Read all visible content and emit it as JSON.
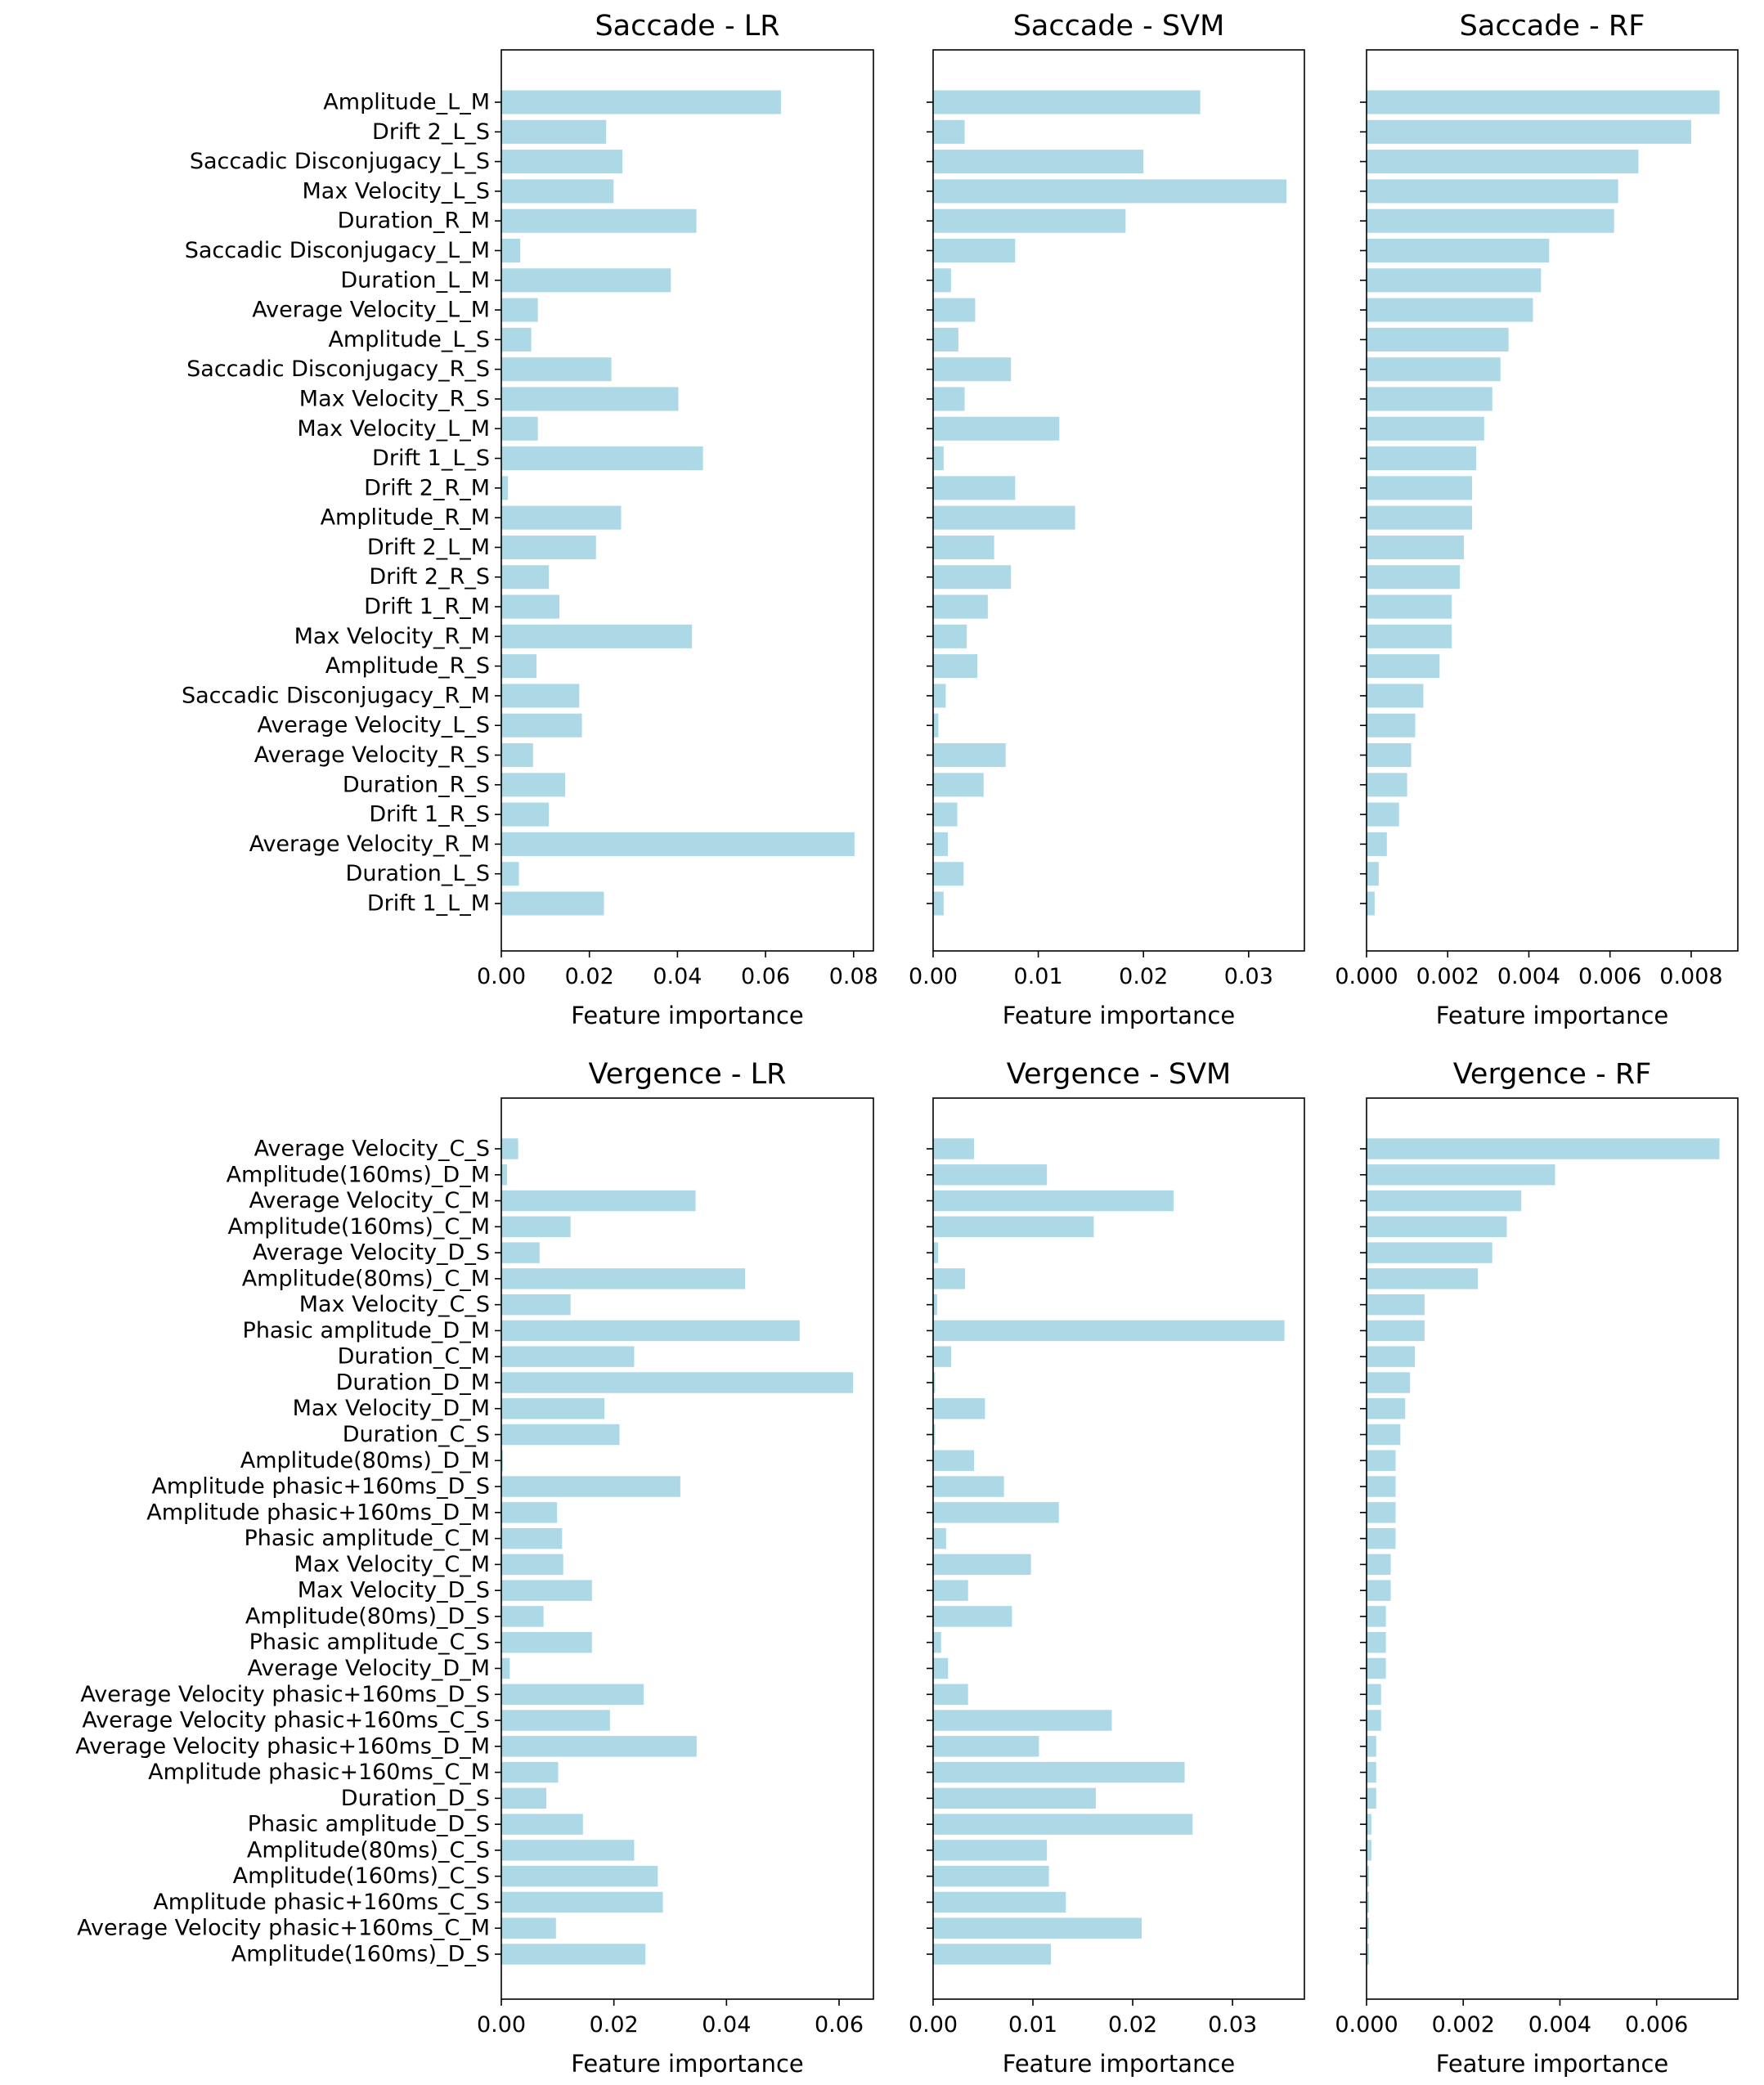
{
  "chart_data": [
    {
      "type": "bar",
      "orientation": "horizontal",
      "title": "Saccade - LR",
      "xlabel": "Feature importance",
      "xlim": [
        0,
        0.0845
      ],
      "xticks": [
        0.0,
        0.02,
        0.04,
        0.06,
        0.08
      ],
      "xtick_labels": [
        "0.00",
        "0.02",
        "0.04",
        "0.06",
        "0.08"
      ],
      "categories": [
        "Amplitude_L_M",
        "Drift 2_L_S",
        "Saccadic Disconjugacy_L_S",
        "Max Velocity_L_S",
        "Duration_R_M",
        "Saccadic Disconjugacy_L_M",
        "Duration_L_M",
        "Average Velocity_L_M",
        "Amplitude_L_S",
        "Saccadic Disconjugacy_R_S",
        "Max Velocity_R_S",
        "Max Velocity_L_M",
        "Drift 1_L_S",
        "Drift 2_R_M",
        "Amplitude_R_M",
        "Drift 2_L_M",
        "Drift 2_R_S",
        "Drift 1_R_M",
        "Max Velocity_R_M",
        "Amplitude_R_S",
        "Saccadic Disconjugacy_R_M",
        "Average Velocity_L_S",
        "Average Velocity_R_S",
        "Duration_R_S",
        "Drift 1_R_S",
        "Average Velocity_R_M",
        "Duration_L_S",
        "Drift 1_L_M"
      ],
      "values": [
        0.0635,
        0.0238,
        0.0275,
        0.0255,
        0.0443,
        0.0043,
        0.0385,
        0.0083,
        0.0068,
        0.025,
        0.0402,
        0.0083,
        0.0458,
        0.0015,
        0.0272,
        0.0215,
        0.0108,
        0.0132,
        0.0433,
        0.008,
        0.0177,
        0.0183,
        0.0072,
        0.0145,
        0.0108,
        0.0802,
        0.004,
        0.0233
      ]
    },
    {
      "type": "bar",
      "orientation": "horizontal",
      "title": "Saccade - SVM",
      "xlabel": "Feature importance",
      "xlim": [
        0,
        0.0353
      ],
      "xticks": [
        0.0,
        0.01,
        0.02,
        0.03
      ],
      "xtick_labels": [
        "0.00",
        "0.01",
        "0.02",
        "0.03"
      ],
      "categories": [
        "Amplitude_L_M",
        "Drift 2_L_S",
        "Saccadic Disconjugacy_L_S",
        "Max Velocity_L_S",
        "Duration_R_M",
        "Saccadic Disconjugacy_L_M",
        "Duration_L_M",
        "Average Velocity_L_M",
        "Amplitude_L_S",
        "Saccadic Disconjugacy_R_S",
        "Max Velocity_R_S",
        "Max Velocity_L_M",
        "Drift 1_L_S",
        "Drift 2_R_M",
        "Amplitude_R_M",
        "Drift 2_L_M",
        "Drift 2_R_S",
        "Drift 1_R_M",
        "Max Velocity_R_M",
        "Amplitude_R_S",
        "Saccadic Disconjugacy_R_M",
        "Average Velocity_L_S",
        "Average Velocity_R_S",
        "Duration_R_S",
        "Drift 1_R_S",
        "Average Velocity_R_M",
        "Duration_L_S",
        "Drift 1_L_M"
      ],
      "values": [
        0.0254,
        0.003,
        0.02,
        0.0336,
        0.0183,
        0.0078,
        0.0017,
        0.004,
        0.0024,
        0.0074,
        0.003,
        0.012,
        0.001,
        0.0078,
        0.0135,
        0.0058,
        0.0074,
        0.0052,
        0.0032,
        0.0042,
        0.0012,
        0.0005,
        0.0069,
        0.0048,
        0.0023,
        0.0014,
        0.0029,
        0.001
      ]
    },
    {
      "type": "bar",
      "orientation": "horizontal",
      "title": "Saccade - RF",
      "xlabel": "Feature importance",
      "xlim": [
        0,
        0.00915
      ],
      "xticks": [
        0.0,
        0.002,
        0.004,
        0.006,
        0.008
      ],
      "xtick_labels": [
        "0.000",
        "0.002",
        "0.004",
        "0.006",
        "0.008"
      ],
      "categories": [
        "Amplitude_L_M",
        "Drift 2_L_S",
        "Saccadic Disconjugacy_L_S",
        "Max Velocity_L_S",
        "Duration_R_M",
        "Saccadic Disconjugacy_L_M",
        "Duration_L_M",
        "Average Velocity_L_M",
        "Amplitude_L_S",
        "Saccadic Disconjugacy_R_S",
        "Max Velocity_R_S",
        "Max Velocity_L_M",
        "Drift 1_L_S",
        "Drift 2_R_M",
        "Amplitude_R_M",
        "Drift 2_L_M",
        "Drift 2_R_S",
        "Drift 1_R_M",
        "Max Velocity_R_M",
        "Amplitude_R_S",
        "Saccadic Disconjugacy_R_M",
        "Average Velocity_L_S",
        "Average Velocity_R_S",
        "Duration_R_S",
        "Drift 1_R_S",
        "Average Velocity_R_M",
        "Duration_L_S",
        "Drift 1_L_M"
      ],
      "values": [
        0.0087,
        0.008,
        0.0067,
        0.0062,
        0.0061,
        0.0045,
        0.0043,
        0.0041,
        0.0035,
        0.0033,
        0.0031,
        0.0029,
        0.0027,
        0.0026,
        0.0026,
        0.0024,
        0.0023,
        0.0021,
        0.0021,
        0.0018,
        0.0014,
        0.0012,
        0.0011,
        0.001,
        0.0008,
        0.0005,
        0.0003,
        0.0002
      ]
    },
    {
      "type": "bar",
      "orientation": "horizontal",
      "title": "Vergence - LR",
      "xlabel": "Feature importance",
      "xlim": [
        0,
        0.0661
      ],
      "xticks": [
        0.0,
        0.02,
        0.04,
        0.06
      ],
      "xtick_labels": [
        "0.00",
        "0.02",
        "0.04",
        "0.06"
      ],
      "categories": [
        "Average Velocity_C_S",
        "Amplitude(160ms)_D_M",
        "Average Velocity_C_M",
        "Amplitude(160ms)_C_M",
        "Average Velocity_D_S",
        "Amplitude(80ms)_C_M",
        "Max Velocity_C_S",
        "Phasic amplitude_D_M",
        "Duration_C_M",
        "Duration_D_M",
        "Max Velocity_D_M",
        "Duration_C_S",
        "Amplitude(80ms)_D_M",
        "Amplitude phasic+160ms_D_S",
        "Amplitude phasic+160ms_D_M",
        "Phasic amplitude_C_M",
        "Max Velocity_C_M",
        "Max Velocity_D_S",
        "Amplitude(80ms)_D_S",
        "Phasic amplitude_C_S",
        "Average Velocity_D_M",
        "Average Velocity phasic+160ms_D_S",
        "Average Velocity phasic+160ms_C_S",
        "Average Velocity phasic+160ms_D_M",
        "Amplitude phasic+160ms_C_M",
        "Duration_D_S",
        "Phasic amplitude_D_S",
        "Amplitude(80ms)_C_S",
        "Amplitude(160ms)_C_S",
        "Amplitude phasic+160ms_C_S",
        "Average Velocity phasic+160ms_C_M",
        "Amplitude(160ms)_D_S"
      ],
      "values": [
        0.003,
        0.001,
        0.0345,
        0.0123,
        0.0068,
        0.0433,
        0.0123,
        0.053,
        0.0236,
        0.0625,
        0.0183,
        0.021,
        0.0003,
        0.0318,
        0.0099,
        0.0108,
        0.011,
        0.0161,
        0.0075,
        0.0161,
        0.0015,
        0.0253,
        0.0193,
        0.0347,
        0.0101,
        0.008,
        0.0145,
        0.0236,
        0.0278,
        0.0287,
        0.0097,
        0.0256
      ]
    },
    {
      "type": "bar",
      "orientation": "horizontal",
      "title": "Vergence - SVM",
      "xlabel": "Feature importance",
      "xlim": [
        0,
        0.0372
      ],
      "xticks": [
        0.0,
        0.01,
        0.02,
        0.03
      ],
      "xtick_labels": [
        "0.00",
        "0.01",
        "0.02",
        "0.03"
      ],
      "categories": [
        "Average Velocity_C_S",
        "Amplitude(160ms)_D_M",
        "Average Velocity_C_M",
        "Amplitude(160ms)_C_M",
        "Average Velocity_D_S",
        "Amplitude(80ms)_C_M",
        "Max Velocity_C_S",
        "Phasic amplitude_D_M",
        "Duration_C_M",
        "Duration_D_M",
        "Max Velocity_D_M",
        "Duration_C_S",
        "Amplitude(80ms)_D_M",
        "Amplitude phasic+160ms_D_S",
        "Amplitude phasic+160ms_D_M",
        "Phasic amplitude_C_M",
        "Max Velocity_C_M",
        "Max Velocity_D_S",
        "Amplitude(80ms)_D_S",
        "Phasic amplitude_C_S",
        "Average Velocity_D_M",
        "Average Velocity phasic+160ms_D_S",
        "Average Velocity phasic+160ms_C_S",
        "Average Velocity phasic+160ms_D_M",
        "Amplitude phasic+160ms_C_M",
        "Duration_D_S",
        "Phasic amplitude_D_S",
        "Amplitude(80ms)_C_S",
        "Amplitude(160ms)_C_S",
        "Amplitude phasic+160ms_C_S",
        "Average Velocity phasic+160ms_C_M",
        "Amplitude(160ms)_D_S"
      ],
      "values": [
        0.0041,
        0.0114,
        0.0241,
        0.0161,
        0.0005,
        0.0032,
        0.0004,
        0.0352,
        0.0018,
        0.0002,
        0.0052,
        0.0002,
        0.0041,
        0.0071,
        0.0126,
        0.0013,
        0.0098,
        0.0035,
        0.0079,
        0.0008,
        0.0015,
        0.0035,
        0.0179,
        0.0106,
        0.0252,
        0.0163,
        0.026,
        0.0114,
        0.0116,
        0.0133,
        0.0209,
        0.0118
      ]
    },
    {
      "type": "bar",
      "orientation": "horizontal",
      "title": "Vergence - RF",
      "xlabel": "Feature importance",
      "xlim": [
        0,
        0.00768
      ],
      "xticks": [
        0.0,
        0.002,
        0.004,
        0.006
      ],
      "xtick_labels": [
        "0.000",
        "0.002",
        "0.004",
        "0.006"
      ],
      "categories": [
        "Average Velocity_C_S",
        "Amplitude(160ms)_D_M",
        "Average Velocity_C_M",
        "Amplitude(160ms)_C_M",
        "Average Velocity_D_S",
        "Amplitude(80ms)_C_M",
        "Max Velocity_C_S",
        "Phasic amplitude_D_M",
        "Duration_C_M",
        "Duration_D_M",
        "Max Velocity_D_M",
        "Duration_C_S",
        "Amplitude(80ms)_D_M",
        "Amplitude phasic+160ms_D_S",
        "Amplitude phasic+160ms_D_M",
        "Phasic amplitude_C_M",
        "Max Velocity_C_M",
        "Max Velocity_D_S",
        "Amplitude(80ms)_D_S",
        "Phasic amplitude_C_S",
        "Average Velocity_D_M",
        "Average Velocity phasic+160ms_D_S",
        "Average Velocity phasic+160ms_C_S",
        "Average Velocity phasic+160ms_D_M",
        "Amplitude phasic+160ms_C_M",
        "Duration_D_S",
        "Phasic amplitude_D_S",
        "Amplitude(80ms)_C_S",
        "Amplitude(160ms)_C_S",
        "Amplitude phasic+160ms_C_S",
        "Average Velocity phasic+160ms_C_M",
        "Amplitude(160ms)_D_S"
      ],
      "values": [
        0.0073,
        0.0039,
        0.0032,
        0.0029,
        0.0026,
        0.0023,
        0.0012,
        0.0012,
        0.001,
        0.0009,
        0.0008,
        0.0007,
        0.0006,
        0.0006,
        0.0006,
        0.0006,
        0.0005,
        0.0005,
        0.0004,
        0.0004,
        0.0004,
        0.0003,
        0.0003,
        0.0002,
        0.0002,
        0.0002,
        0.0001,
        0.0001,
        5e-05,
        5e-05,
        5e-05,
        5e-05
      ]
    }
  ],
  "style": {
    "bar_color": "#add8e6",
    "axis_color": "#000000",
    "background": "#ffffff"
  }
}
